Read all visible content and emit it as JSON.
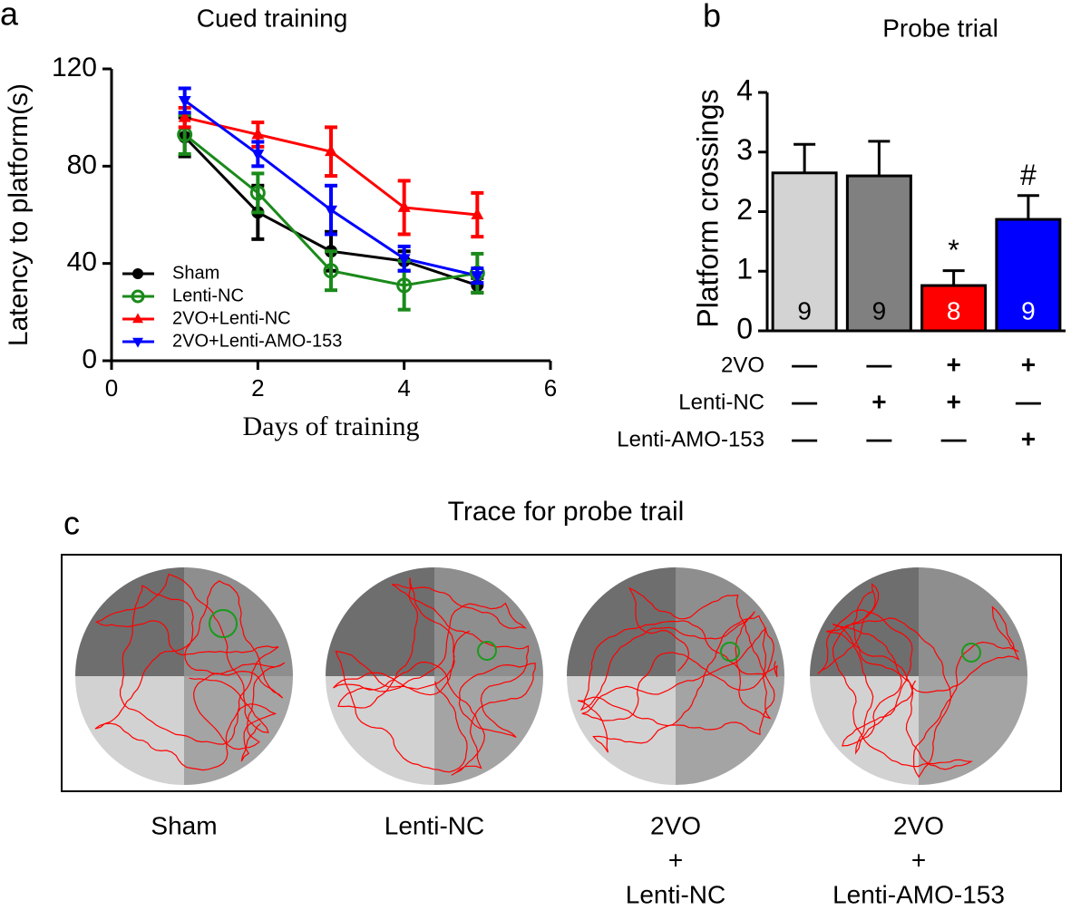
{
  "chart_data": [
    {
      "type": "line",
      "panel": "a",
      "title": "Cued training",
      "x_label": "Days of training",
      "y_label": "Latency to platform(s)",
      "xlim": [
        0,
        6
      ],
      "xticks": [
        0,
        2,
        4,
        6
      ],
      "ylim": [
        0,
        120
      ],
      "yticks": [
        0,
        40,
        80,
        120
      ],
      "series": [
        {
          "name": "Sham",
          "color": "#000000",
          "marker": "circle",
          "x": [
            1,
            2,
            3,
            4,
            5
          ],
          "values": [
            92,
            61,
            45,
            41,
            31
          ],
          "errors": [
            8,
            11,
            8,
            4,
            3
          ]
        },
        {
          "name": "Lenti-NC",
          "color": "#1a8a1a",
          "marker": "open-circle",
          "x": [
            1,
            2,
            3,
            4,
            5
          ],
          "values": [
            93,
            69,
            37,
            31,
            36
          ],
          "errors": [
            8,
            8,
            8,
            10,
            8
          ]
        },
        {
          "name": "2VO+Lenti-NC",
          "color": "#ff0000",
          "marker": "triangle-up",
          "x": [
            1,
            2,
            3,
            4,
            5
          ],
          "values": [
            100,
            93,
            86,
            63,
            60
          ],
          "errors": [
            4,
            5,
            10,
            11,
            9
          ]
        },
        {
          "name": "2VO+Lenti-AMO-153",
          "color": "#0000ff",
          "marker": "triangle-down",
          "x": [
            1,
            2,
            3,
            4,
            5
          ],
          "values": [
            107,
            85,
            62,
            42,
            35
          ],
          "errors": [
            5,
            5,
            10,
            5,
            3
          ]
        }
      ]
    },
    {
      "type": "bar",
      "panel": "b",
      "title": "Probe trial",
      "y_label": "Platform crossings",
      "ylim": [
        0,
        4
      ],
      "yticks": [
        0,
        1,
        2,
        3,
        4
      ],
      "values": [
        2.65,
        2.6,
        0.76,
        1.87
      ],
      "errors": [
        0.48,
        0.58,
        0.25,
        0.4
      ],
      "colors": [
        "#d3d3d3",
        "#808080",
        "#ff0000",
        "#0000ff"
      ],
      "n_labels": [
        9,
        9,
        8,
        9
      ],
      "n_label_colors": [
        "#000000",
        "#000000",
        "#ffffff",
        "#ffffff"
      ],
      "annotations": [
        {
          "index": 2,
          "text": "*"
        },
        {
          "index": 3,
          "text": "#"
        }
      ],
      "treatments": [
        {
          "label": "2VO",
          "signs": [
            "—",
            "—",
            "+",
            "+"
          ]
        },
        {
          "label": "Lenti-NC",
          "signs": [
            "—",
            "+",
            "+",
            "—"
          ]
        },
        {
          "label": "Lenti-AMO-153",
          "signs": [
            "—",
            "—",
            "—",
            "+"
          ]
        }
      ]
    }
  ],
  "panel_c": {
    "label": "c",
    "title": "Trace for probe trail",
    "captions": [
      [
        "Sham"
      ],
      [
        "Lenti-NC"
      ],
      [
        "2VO",
        "+",
        "Lenti-NC"
      ],
      [
        "2VO",
        "+",
        "Lenti-AMO-153"
      ]
    ]
  }
}
